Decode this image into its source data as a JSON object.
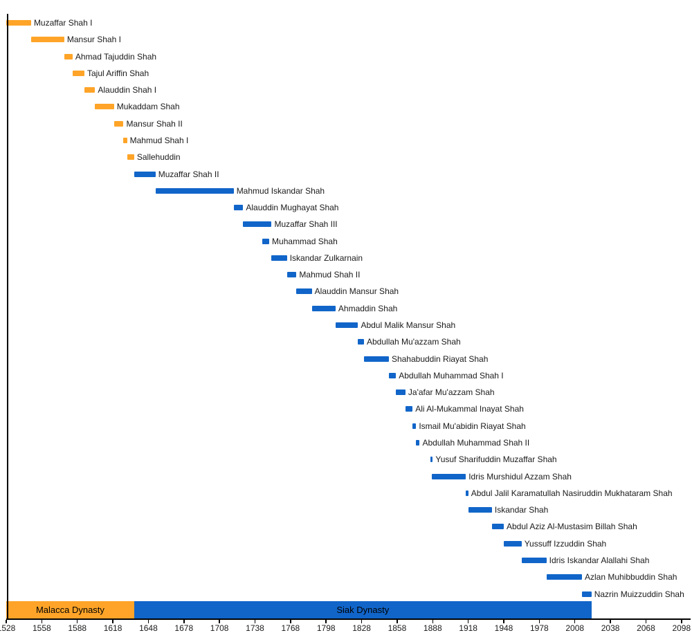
{
  "chart_data": {
    "type": "gantt",
    "title": "",
    "legend": "none",
    "grid": false,
    "axis": {
      "min": 1528,
      "max": 2098,
      "tick_interval": 30,
      "position": "bottom",
      "ticks": [
        1528,
        1558,
        1588,
        1618,
        1648,
        1678,
        1708,
        1738,
        1768,
        1798,
        1828,
        1858,
        1888,
        1918,
        1948,
        1978,
        2008,
        2038,
        2068,
        2098
      ]
    },
    "colors": {
      "malacca": "#FFA428",
      "siak": "#1165C9",
      "axis": "#000000",
      "label_text": "#1A1A1A",
      "background": "#FFFFFF"
    },
    "dynasty_bands": [
      {
        "label": "Malacca Dynasty",
        "start": 1528,
        "end": 1636,
        "dynasty": "malacca"
      },
      {
        "label": "Siak Dynasty",
        "start": 1636,
        "end": 2022,
        "dynasty": "siak"
      }
    ],
    "rulers": [
      {
        "label": "Muzaffar Shah I",
        "start": 1528,
        "end": 1549,
        "dynasty": "malacca"
      },
      {
        "label": "Mansur Shah I",
        "start": 1549,
        "end": 1577,
        "dynasty": "malacca"
      },
      {
        "label": "Ahmad Tajuddin Shah",
        "start": 1577,
        "end": 1584,
        "dynasty": "malacca"
      },
      {
        "label": "Tajul Ariffin Shah",
        "start": 1584,
        "end": 1594,
        "dynasty": "malacca"
      },
      {
        "label": "Alauddin Shah I",
        "start": 1594,
        "end": 1603,
        "dynasty": "malacca"
      },
      {
        "label": "Mukaddam Shah",
        "start": 1603,
        "end": 1619,
        "dynasty": "malacca"
      },
      {
        "label": "Mansur Shah II",
        "start": 1619,
        "end": 1627,
        "dynasty": "malacca"
      },
      {
        "label": "Mahmud Shah I",
        "start": 1627,
        "end": 1630,
        "dynasty": "malacca"
      },
      {
        "label": "Sallehuddin",
        "start": 1630,
        "end": 1636,
        "dynasty": "malacca"
      },
      {
        "label": "Muzaffar Shah II",
        "start": 1636,
        "end": 1654,
        "dynasty": "siak"
      },
      {
        "label": "Mahmud Iskandar Shah",
        "start": 1654,
        "end": 1720,
        "dynasty": "siak"
      },
      {
        "label": "Alauddin Mughayat Shah",
        "start": 1720,
        "end": 1728,
        "dynasty": "siak"
      },
      {
        "label": "Muzaffar Shah III",
        "start": 1728,
        "end": 1752,
        "dynasty": "siak"
      },
      {
        "label": "Muhammad Shah",
        "start": 1744,
        "end": 1750,
        "dynasty": "siak"
      },
      {
        "label": "Iskandar Zulkarnain",
        "start": 1752,
        "end": 1765,
        "dynasty": "siak"
      },
      {
        "label": "Mahmud Shah II",
        "start": 1765,
        "end": 1773,
        "dynasty": "siak"
      },
      {
        "label": "Alauddin Mansur Shah",
        "start": 1773,
        "end": 1786,
        "dynasty": "siak"
      },
      {
        "label": "Ahmaddin Shah",
        "start": 1786,
        "end": 1806,
        "dynasty": "siak"
      },
      {
        "label": "Abdul Malik Mansur Shah",
        "start": 1806,
        "end": 1825,
        "dynasty": "siak"
      },
      {
        "label": "Abdullah Mu'azzam Shah",
        "start": 1825,
        "end": 1830,
        "dynasty": "siak"
      },
      {
        "label": "Shahabuddin Riayat Shah",
        "start": 1830,
        "end": 1851,
        "dynasty": "siak"
      },
      {
        "label": "Abdullah Muhammad Shah I",
        "start": 1851,
        "end": 1857,
        "dynasty": "siak"
      },
      {
        "label": "Ja'afar Mu'azzam Shah",
        "start": 1857,
        "end": 1865,
        "dynasty": "siak"
      },
      {
        "label": "Ali Al-Mukammal Inayat Shah",
        "start": 1865,
        "end": 1871,
        "dynasty": "siak"
      },
      {
        "label": "Ismail Mu'abidin Riayat Shah",
        "start": 1871,
        "end": 1874,
        "dynasty": "siak"
      },
      {
        "label": "Abdullah Muhammad Shah II",
        "start": 1874,
        "end": 1877,
        "dynasty": "siak"
      },
      {
        "label": "Yusuf Sharifuddin Muzaffar Shah",
        "start": 1886,
        "end": 1887,
        "dynasty": "siak"
      },
      {
        "label": "Idris Murshidul Azzam Shah",
        "start": 1887,
        "end": 1916,
        "dynasty": "siak"
      },
      {
        "label": "Abdul Jalil Karamatullah Nasiruddin Mukhataram Shah",
        "start": 1916,
        "end": 1918,
        "dynasty": "siak"
      },
      {
        "label": "Iskandar Shah",
        "start": 1918,
        "end": 1938,
        "dynasty": "siak"
      },
      {
        "label": "Abdul Aziz Al-Mustasim Billah Shah",
        "start": 1938,
        "end": 1948,
        "dynasty": "siak"
      },
      {
        "label": "Yussuff Izzuddin Shah",
        "start": 1948,
        "end": 1963,
        "dynasty": "siak"
      },
      {
        "label": "Idris Iskandar Alallahi Shah",
        "start": 1963,
        "end": 1984,
        "dynasty": "siak"
      },
      {
        "label": "Azlan Muhibbuddin Shah",
        "start": 1984,
        "end": 2014,
        "dynasty": "siak"
      },
      {
        "label": "Nazrin Muizzuddin Shah",
        "start": 2014,
        "end": 2022,
        "dynasty": "siak"
      }
    ]
  }
}
